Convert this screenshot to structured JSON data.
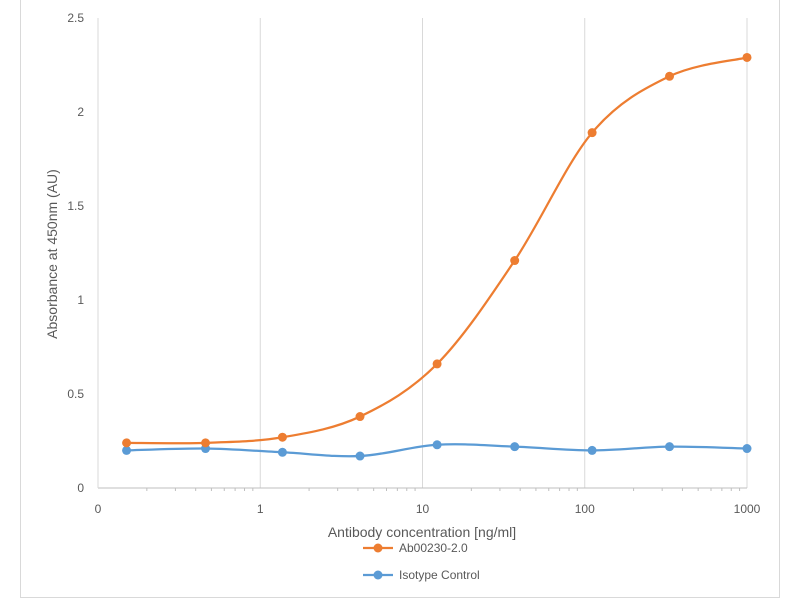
{
  "chart_data": {
    "type": "line",
    "xlabel": "Antibody concentration [ng/ml]",
    "ylabel": "Absorbance at 450nm (AU)",
    "x_scale": "log",
    "x_ticks": [
      "0",
      "1",
      "10",
      "100",
      "1000"
    ],
    "xlim": [
      0.1,
      1000
    ],
    "ylim": [
      0,
      2.5
    ],
    "y_ticks": [
      "0",
      "0.5",
      "1",
      "1.5",
      "2",
      "2.5"
    ],
    "grid": "vertical major gridlines",
    "legend_position": "bottom",
    "x": [
      0.15,
      0.46,
      1.37,
      4.12,
      12.3,
      37.0,
      111,
      333,
      1000
    ],
    "series": [
      {
        "name": "Ab00230-2.0",
        "color": "#ED7D31",
        "values": [
          0.24,
          0.24,
          0.27,
          0.38,
          0.66,
          1.21,
          1.89,
          2.19,
          2.29
        ]
      },
      {
        "name": "Isotype Control",
        "color": "#5B9BD5",
        "values": [
          0.2,
          0.21,
          0.19,
          0.17,
          0.23,
          0.22,
          0.2,
          0.22,
          0.21
        ]
      }
    ]
  }
}
